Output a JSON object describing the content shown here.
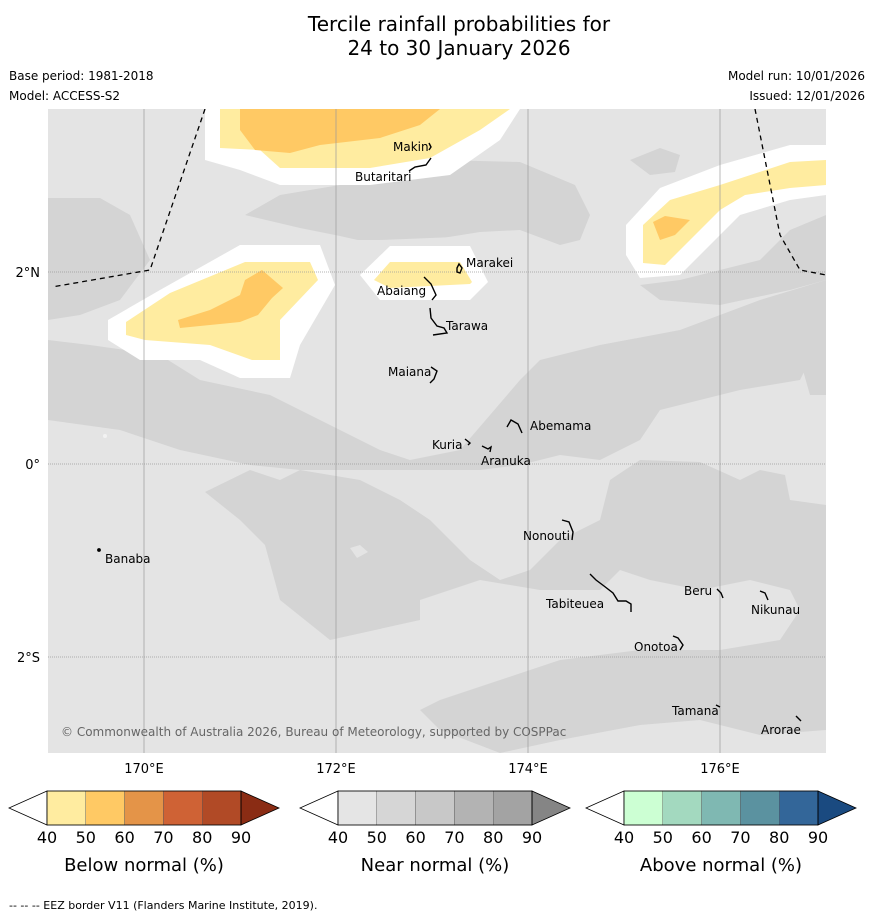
{
  "title": {
    "line1": "Tercile rainfall probabilities for",
    "line2": "24 to 30 January 2026"
  },
  "meta": {
    "base_period": "Base period: 1981-2018",
    "model": "Model: ACCESS-S2",
    "model_run": "Model run: 10/01/2026",
    "issued": "Issued: 12/01/2026"
  },
  "map": {
    "copyright": "© Commonwealth of Australia 2026, Bureau of Meteorology, supported by COSPPac",
    "lat_labels": [
      "2°N",
      "0°",
      "2°S"
    ],
    "lon_labels": [
      "170°E",
      "172°E",
      "174°E",
      "176°E"
    ],
    "islands": [
      "Makin",
      "Butaritari",
      "Marakei",
      "Abaiang",
      "Tarawa",
      "Maiana",
      "Abemama",
      "Kuria",
      "Aranuka",
      "Banaba",
      "Nonouti",
      "Beru",
      "Tabiteuea",
      "Nikunau",
      "Onotoa",
      "Tamana",
      "Arorae"
    ]
  },
  "legends": [
    {
      "label": "Below normal (%)",
      "ticks": [
        "40",
        "50",
        "60",
        "70",
        "80",
        "90"
      ],
      "colors": [
        "#ffffff",
        "#ffeca0",
        "#ffc964",
        "#e49448",
        "#cf6235",
        "#b14a26",
        "#8a2c14"
      ]
    },
    {
      "label": "Near normal (%)",
      "ticks": [
        "40",
        "50",
        "60",
        "70",
        "80",
        "90"
      ],
      "colors": [
        "#ffffff",
        "#e5e5e5",
        "#d6d6d6",
        "#c8c8c8",
        "#b3b3b3",
        "#a3a3a3",
        "#858585"
      ]
    },
    {
      "label": "Above normal (%)",
      "ticks": [
        "40",
        "50",
        "60",
        "70",
        "80",
        "90"
      ],
      "colors": [
        "#ffffff",
        "#ccffd3",
        "#a3d9bf",
        "#7fb8b2",
        "#5b92a0",
        "#336699",
        "#1a4a80"
      ]
    }
  ],
  "footnote": "--  --  -- EEZ border V11 (Flanders Marine Institute, 2019)."
}
